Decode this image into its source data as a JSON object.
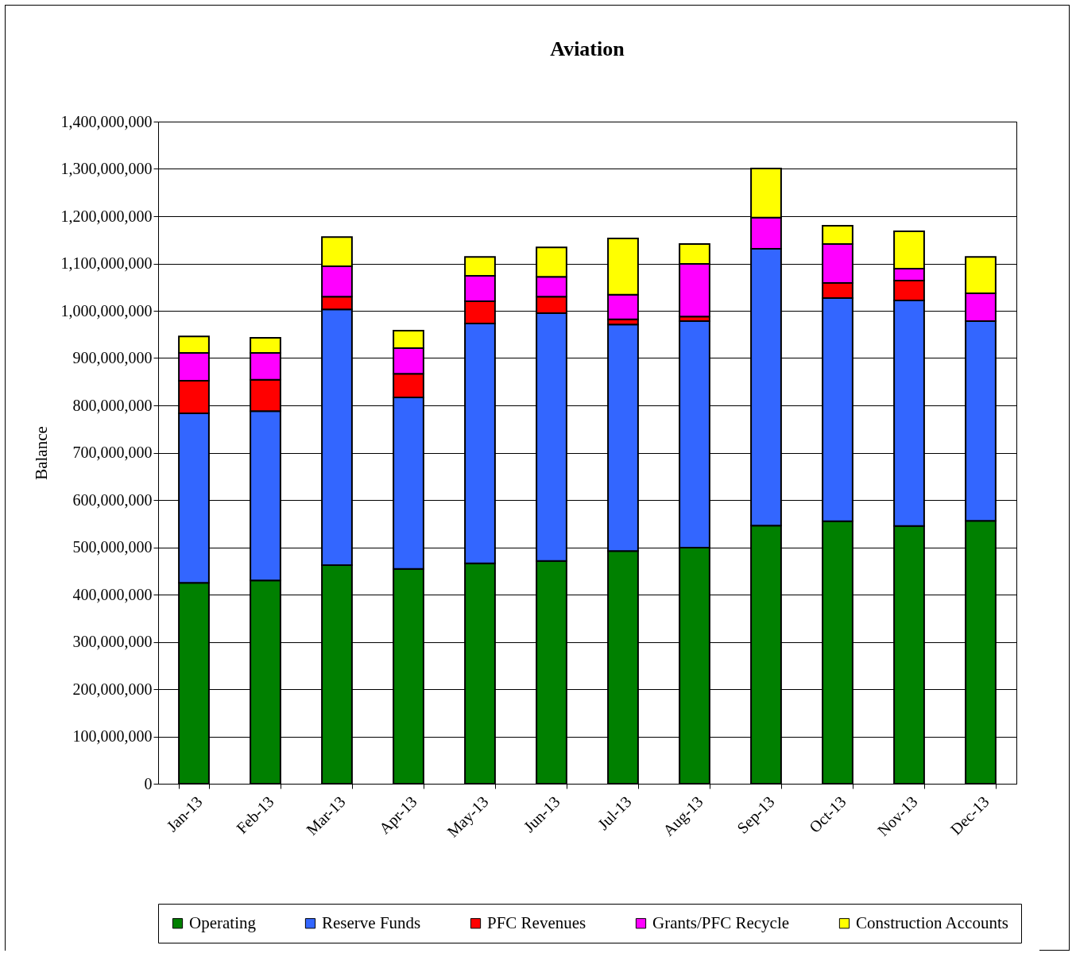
{
  "chart_data": {
    "type": "bar",
    "title": "Aviation",
    "ylabel": "Balance",
    "stacked": true,
    "grid": "y",
    "legend": "bottom",
    "categories": [
      "Jan-13",
      "Feb-13",
      "Mar-13",
      "Apr-13",
      "May-13",
      "Jun-13",
      "Jul-13",
      "Aug-13",
      "Sep-13",
      "Oct-13",
      "Nov-13",
      "Dec-13"
    ],
    "ylim": [
      0,
      1400000000
    ],
    "yticks": [
      0,
      {
        "value": 100000000,
        "label": "100,000,000"
      },
      {
        "value": 200000000,
        "label": "200,000,000"
      },
      {
        "value": 300000000,
        "label": "300,000,000"
      },
      {
        "value": 400000000,
        "label": "400,000,000"
      },
      {
        "value": 500000000,
        "label": "500,000,000"
      },
      {
        "value": 600000000,
        "label": "600,000,000"
      },
      {
        "value": 700000000,
        "label": "700,000,000"
      },
      {
        "value": 800000000,
        "label": "800,000,000"
      },
      {
        "value": 900000000,
        "label": "900,000,000"
      },
      {
        "value": 1000000000,
        "label": "1,000,000,000"
      },
      {
        "value": 1100000000,
        "label": "1,100,000,000"
      },
      {
        "value": 1200000000,
        "label": "1,200,000,000"
      },
      {
        "value": 1300000000,
        "label": "1,300,000,000"
      },
      {
        "value": 1400000000,
        "label": "1,400,000,000"
      }
    ],
    "series": [
      {
        "name": "Operating",
        "color": "#008000",
        "values": [
          425000000,
          430000000,
          462000000,
          454000000,
          466000000,
          471000000,
          492000000,
          499000000,
          546000000,
          555000000,
          545000000,
          556000000
        ]
      },
      {
        "name": "Reserve Funds",
        "color": "#3366ff",
        "values": [
          358000000,
          358000000,
          541000000,
          363000000,
          507000000,
          524000000,
          479000000,
          479000000,
          585000000,
          472000000,
          477000000,
          422000000
        ]
      },
      {
        "name": "PFC Revenues",
        "color": "#ff0000",
        "values": [
          69000000,
          66000000,
          27000000,
          50000000,
          47000000,
          35000000,
          11000000,
          10000000,
          0,
          32000000,
          42000000,
          0
        ]
      },
      {
        "name": "Grants/PFC Recycle",
        "color": "#ff00ff",
        "values": [
          59000000,
          57000000,
          64000000,
          54000000,
          54000000,
          42000000,
          52000000,
          111000000,
          66000000,
          82000000,
          25000000,
          59000000
        ]
      },
      {
        "name": "Construction Accounts",
        "color": "#ffff00",
        "values": [
          35000000,
          32000000,
          62000000,
          37000000,
          40000000,
          62000000,
          119000000,
          42000000,
          104000000,
          39000000,
          79000000,
          77000000
        ]
      }
    ]
  }
}
